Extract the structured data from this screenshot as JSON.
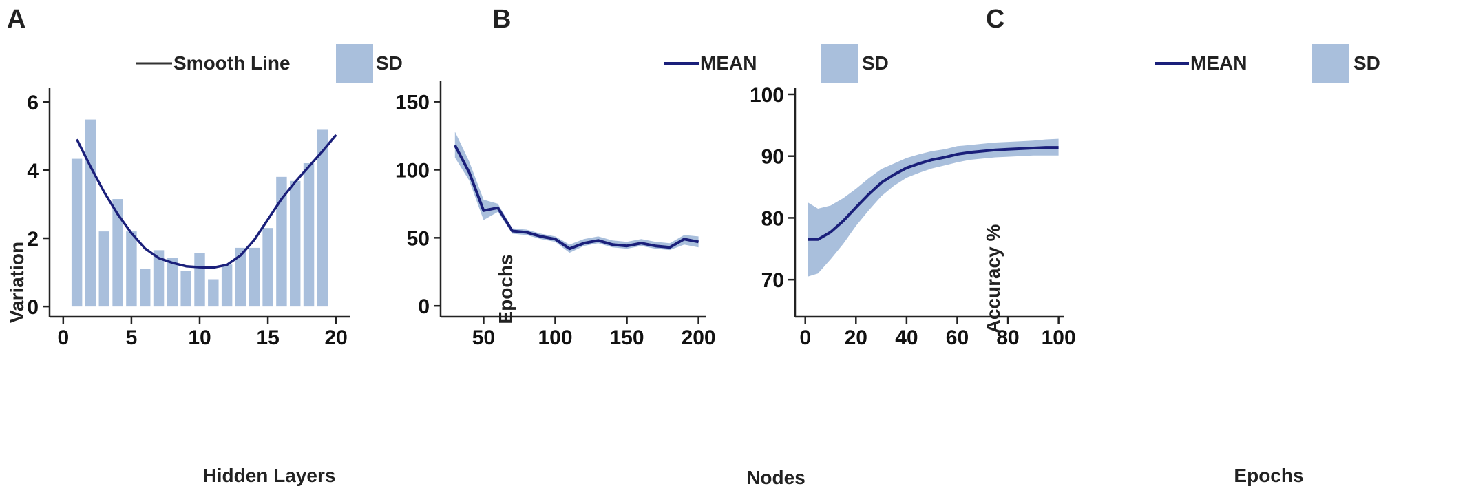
{
  "colors": {
    "mean_line": "#1a1f7a",
    "sd_fill": "#a9bfdc",
    "smooth_legend": "#333333"
  },
  "chart_data": [
    {
      "panel": "A",
      "type": "bar",
      "legend": [
        "Smooth Line",
        "SD"
      ],
      "xlabel": "Hidden Layers",
      "ylabel": "Variation",
      "xlim": [
        -1,
        21
      ],
      "ylim": [
        -0.3,
        6.4
      ],
      "xticks": [
        0,
        5,
        10,
        15,
        20
      ],
      "yticks": [
        0,
        2,
        4,
        6
      ],
      "x": [
        1,
        2,
        3,
        4,
        5,
        6,
        7,
        8,
        9,
        10,
        11,
        12,
        13,
        14,
        15,
        16,
        17,
        18,
        19
      ],
      "values": [
        4.33,
        5.48,
        2.2,
        3.15,
        2.2,
        1.1,
        1.65,
        1.42,
        1.05,
        1.57,
        0.8,
        1.23,
        1.72,
        1.72,
        2.3,
        3.8,
        3.68,
        4.2,
        5.18
      ],
      "smooth_line": {
        "x": [
          1,
          2,
          3,
          4,
          5,
          6,
          7,
          8,
          9,
          10,
          11,
          12,
          13,
          14,
          15,
          16,
          17,
          18,
          19,
          20
        ],
        "y": [
          4.9,
          4.1,
          3.35,
          2.7,
          2.15,
          1.7,
          1.42,
          1.28,
          1.18,
          1.15,
          1.14,
          1.22,
          1.5,
          1.95,
          2.55,
          3.15,
          3.65,
          4.1,
          4.55,
          5.03
        ]
      }
    },
    {
      "panel": "B",
      "type": "line",
      "legend": [
        "MEAN",
        "SD"
      ],
      "xlabel": "Nodes",
      "ylabel": "Epochs",
      "xlim": [
        20,
        205
      ],
      "ylim": [
        -8,
        165
      ],
      "xticks": [
        50,
        100,
        150,
        200
      ],
      "yticks": [
        0,
        50,
        100,
        150
      ],
      "series": [
        {
          "name": "MEAN",
          "x": [
            30,
            40,
            50,
            60,
            70,
            80,
            90,
            100,
            110,
            120,
            130,
            140,
            150,
            160,
            170,
            180,
            190,
            200
          ],
          "y": [
            118,
            98,
            70,
            72,
            55,
            54,
            51,
            49,
            42,
            46,
            48,
            45,
            44,
            46,
            44,
            43,
            49,
            47
          ],
          "lower": [
            109,
            92,
            63,
            69,
            53,
            52,
            49,
            47,
            39,
            44,
            46,
            43,
            42,
            44,
            42,
            41,
            45,
            43
          ],
          "upper": [
            128,
            106,
            78,
            75,
            57,
            56,
            53,
            51,
            45,
            49,
            51,
            48,
            47,
            49,
            47,
            46,
            52,
            51
          ]
        }
      ]
    },
    {
      "panel": "C",
      "type": "line",
      "legend": [
        "MEAN",
        "SD"
      ],
      "xlabel": "Epochs",
      "ylabel": "Accuracy %",
      "xlim": [
        -4,
        102
      ],
      "ylim": [
        64,
        101
      ],
      "xticks": [
        0,
        20,
        40,
        60,
        80,
        100
      ],
      "yticks": [
        70,
        80,
        90,
        100
      ],
      "series": [
        {
          "name": "MEAN",
          "x": [
            1,
            5,
            10,
            15,
            20,
            25,
            30,
            35,
            40,
            45,
            50,
            55,
            60,
            65,
            70,
            75,
            80,
            85,
            90,
            95,
            100
          ],
          "y": [
            76.5,
            76.5,
            77.7,
            79.5,
            81.7,
            83.8,
            85.7,
            87.0,
            88.1,
            88.8,
            89.4,
            89.8,
            90.3,
            90.6,
            90.8,
            91.0,
            91.1,
            91.2,
            91.3,
            91.4,
            91.4
          ],
          "lower": [
            70.5,
            71.0,
            73.3,
            75.8,
            78.7,
            81.2,
            83.5,
            85.2,
            86.5,
            87.3,
            88.0,
            88.5,
            89.0,
            89.4,
            89.6,
            89.8,
            89.9,
            90.0,
            90.1,
            90.1,
            90.1
          ],
          "upper": [
            82.5,
            81.5,
            82.0,
            83.2,
            84.7,
            86.4,
            87.9,
            88.8,
            89.7,
            90.3,
            90.8,
            91.1,
            91.6,
            91.8,
            92.0,
            92.2,
            92.3,
            92.4,
            92.5,
            92.7,
            92.8
          ]
        }
      ]
    }
  ]
}
